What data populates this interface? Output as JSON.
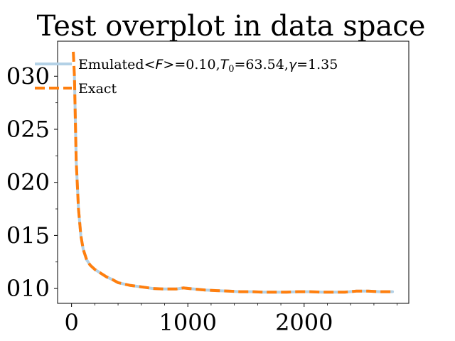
{
  "chart_data": {
    "type": "line",
    "title": "Test overplot in data space",
    "xlabel": "",
    "ylabel": "",
    "xlim": [
      -120,
      2900
    ],
    "ylim": [
      0.0086,
      0.0333
    ],
    "x_ticks": [
      0,
      1000,
      2000
    ],
    "x_tick_labels": [
      "0",
      "1000",
      "2000"
    ],
    "x_minor_ticks": [
      200,
      400,
      600,
      800,
      1200,
      1400,
      1600,
      1800,
      2200,
      2400,
      2600,
      2800
    ],
    "y_ticks": [
      0.01,
      0.015,
      0.02,
      0.025,
      0.03
    ],
    "y_tick_labels": [
      "010",
      "015",
      "020",
      "025",
      "030"
    ],
    "y_minor_ticks": [
      0.0125,
      0.0175,
      0.0225,
      0.0275
    ],
    "grid": false,
    "legend_position": "top-right",
    "series": [
      {
        "name": "Emulated<F>=0.10,T0=63.54,γ=1.35",
        "legend_parts": {
          "prefix": "Emulated",
          "formula": "<F>",
          "mid": "=0.10,",
          "t": "T",
          "t_sub": "0",
          "t_val": "=63.54,",
          "gamma": "γ",
          "gamma_val": "=1.35"
        },
        "color": "#b3d1e6",
        "dash": "solid",
        "x": [
          25,
          40,
          60,
          80,
          100,
          130,
          160,
          200,
          250,
          300,
          350,
          400,
          500,
          600,
          700,
          800,
          900,
          960,
          1050,
          1150,
          1250,
          1350,
          1450,
          1550,
          1650,
          1750,
          1850,
          1950,
          2050,
          2150,
          2250,
          2350,
          2450,
          2550,
          2650,
          2760
        ],
        "y": [
          0.03,
          0.022,
          0.0175,
          0.015,
          0.0137,
          0.0127,
          0.0122,
          0.0118,
          0.01145,
          0.0111,
          0.01085,
          0.01055,
          0.0103,
          0.01015,
          0.01,
          0.00995,
          0.00995,
          0.01005,
          0.00995,
          0.00985,
          0.0098,
          0.00975,
          0.0097,
          0.0097,
          0.00965,
          0.00965,
          0.00965,
          0.0097,
          0.0097,
          0.00965,
          0.00965,
          0.00965,
          0.00975,
          0.00975,
          0.0097,
          0.0097
        ]
      },
      {
        "name": "Exact",
        "color": "#ff7f0e",
        "dash": "dashed",
        "x": [
          15,
          25,
          40,
          60,
          80,
          100,
          130,
          160,
          200,
          250,
          300,
          350,
          400,
          500,
          600,
          700,
          800,
          900,
          960,
          1050,
          1150,
          1250,
          1350,
          1450,
          1550,
          1650,
          1750,
          1850,
          1950,
          2050,
          2150,
          2250,
          2350,
          2450,
          2550,
          2650,
          2760
        ],
        "y": [
          0.0323,
          0.03,
          0.022,
          0.0175,
          0.015,
          0.0137,
          0.0127,
          0.0122,
          0.0118,
          0.01145,
          0.0111,
          0.01085,
          0.01055,
          0.0103,
          0.01015,
          0.01,
          0.00995,
          0.00995,
          0.01005,
          0.00995,
          0.00985,
          0.0098,
          0.00975,
          0.0097,
          0.0097,
          0.00965,
          0.00965,
          0.00965,
          0.0097,
          0.0097,
          0.00965,
          0.00965,
          0.00965,
          0.00975,
          0.00975,
          0.0097,
          0.0097
        ]
      }
    ]
  }
}
